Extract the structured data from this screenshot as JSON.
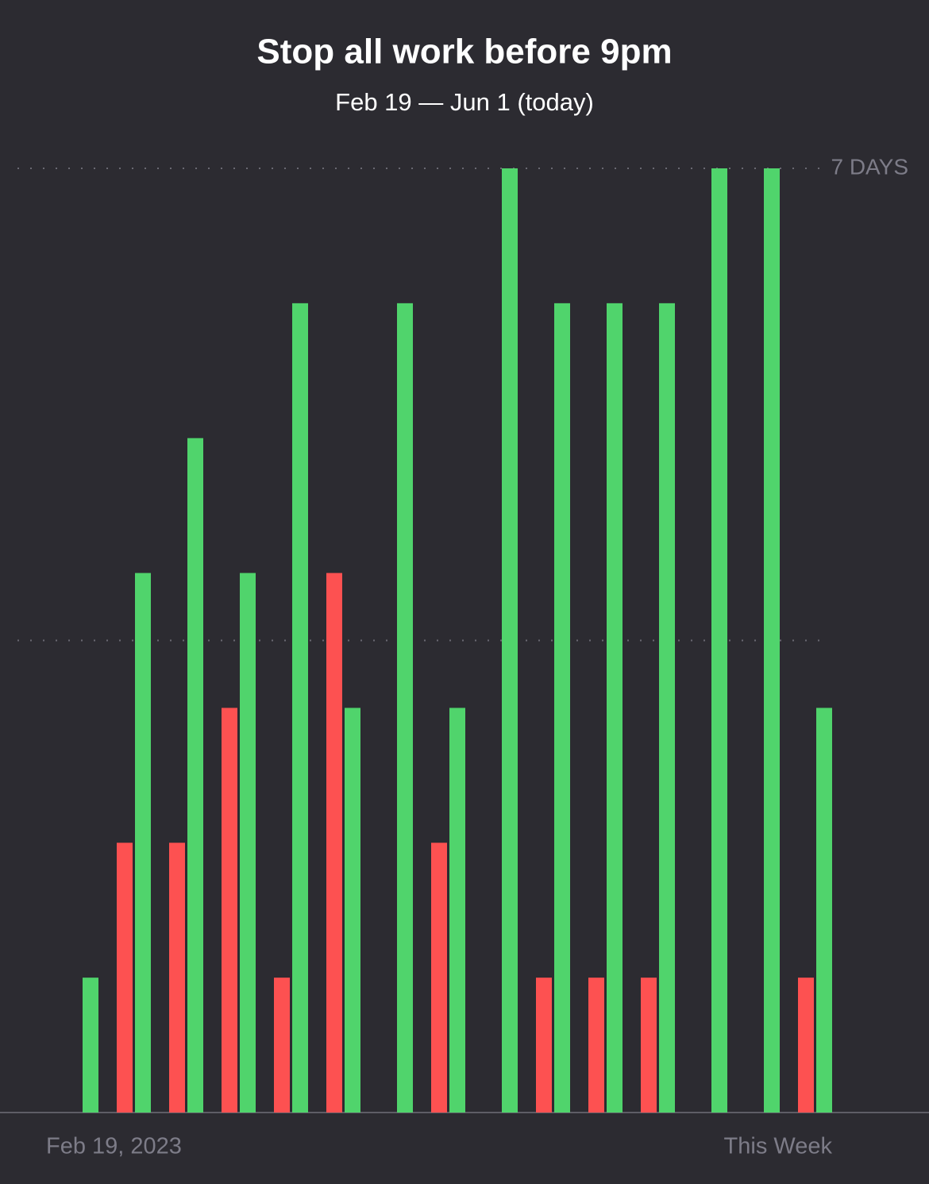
{
  "chart_data": {
    "type": "bar",
    "title": "Stop all work before 9pm",
    "subtitle": "Feb 19 — Jun 1 (today)",
    "categories": [
      "Feb 19, 2023",
      null,
      null,
      null,
      null,
      null,
      null,
      null,
      null,
      null,
      null,
      null,
      null,
      null,
      "This Week"
    ],
    "series": [
      {
        "color": "#fd5151",
        "values": [
          0,
          2,
          2,
          3,
          1,
          4,
          0,
          2,
          0,
          1,
          1,
          1,
          0,
          0,
          1
        ]
      },
      {
        "color": "#50d46c",
        "values": [
          1,
          4,
          5,
          4,
          6,
          3,
          6,
          3,
          7,
          6,
          6,
          6,
          7,
          7,
          3
        ]
      }
    ],
    "ylim": [
      0,
      7
    ],
    "yticks": [
      {
        "value": 7,
        "label": "7 DAYS"
      }
    ],
    "gridlines": [
      3.5,
      7
    ]
  }
}
